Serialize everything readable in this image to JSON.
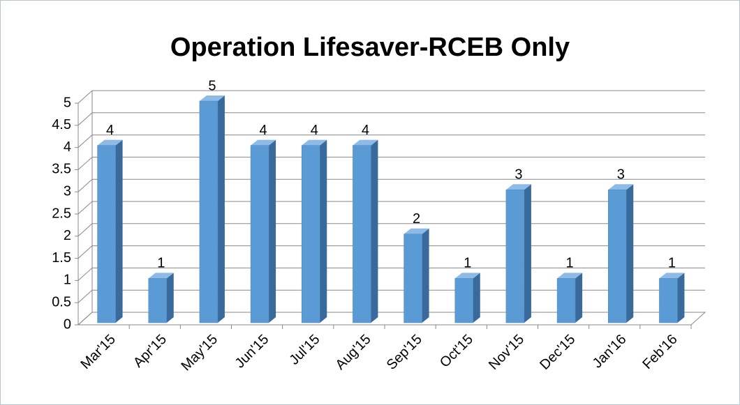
{
  "chart_data": {
    "type": "bar3d",
    "title": "Operation Lifesaver-RCEB Only",
    "categories": [
      "Mar'15",
      "Apr'15",
      "May'15",
      "Jun'15",
      "Jul'15",
      "Aug'15",
      "Sep'15",
      "Oct'15",
      "Nov'15",
      "Dec'15",
      "Jan'16",
      "Feb'16"
    ],
    "values": [
      4,
      1,
      5,
      4,
      4,
      4,
      2,
      1,
      3,
      1,
      3,
      1
    ],
    "color": "#5b9bd5",
    "ylim": [
      0,
      5
    ],
    "yticks": [
      0,
      0.5,
      1,
      1.5,
      2,
      2.5,
      3,
      3.5,
      4,
      4.5,
      5
    ],
    "grid": true
  }
}
